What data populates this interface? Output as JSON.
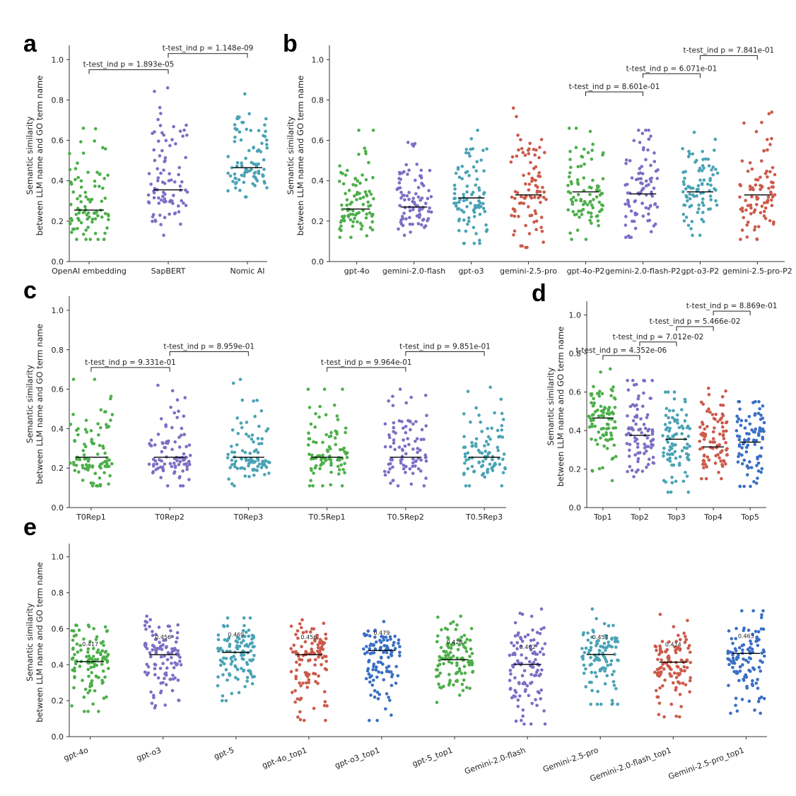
{
  "chart_data": [
    {
      "panel": "a",
      "type": "scatter",
      "ylabel": "Semantic similarity\nbetween LLM name and GO term name",
      "ylim": [
        0.0,
        1.05
      ],
      "yticks": [
        "0.0",
        "0.2",
        "0.4",
        "0.6",
        "0.8",
        "1.0"
      ],
      "categories": [
        "OpenAI embedding",
        "SapBERT",
        "Nomic AI"
      ],
      "colors": [
        "#4daf4a",
        "#7b6fc4",
        "#4aa3b5"
      ],
      "medians": [
        0.255,
        0.355,
        0.465
      ],
      "spreads": [
        [
          0.11,
          0.66
        ],
        [
          0.13,
          0.86
        ],
        [
          0.32,
          0.83
        ]
      ],
      "n_points": 90,
      "comparisons": [
        {
          "from": 0,
          "to": 1,
          "level": 0.95,
          "text": "t-test_ind p = 1.893e-05"
        },
        {
          "from": 1,
          "to": 2,
          "level": 1.03,
          "text": "t-test_ind p = 1.148e-09"
        }
      ]
    },
    {
      "panel": "b",
      "type": "scatter",
      "ylabel": "Semantic similarity\nbetween LLM name and GO term name",
      "ylim": [
        0.0,
        1.05
      ],
      "yticks": [
        "0.0",
        "0.2",
        "0.4",
        "0.6",
        "0.8",
        "1.0"
      ],
      "categories": [
        "gpt-4o",
        "gemini-2.0-flash",
        "gpt-o3",
        "gemini-2.5-pro",
        "gpt-4o-P2",
        "gemini-2.0-flash-P2",
        "gpt-o3-P2",
        "gemini-2.5-pro-P2"
      ],
      "colors": [
        "#4daf4a",
        "#7b6fc4",
        "#4aa3b5",
        "#cc5a4a",
        "#4daf4a",
        "#7b6fc4",
        "#4aa3b5",
        "#cc5a4a"
      ],
      "medians": [
        0.26,
        0.27,
        0.315,
        0.33,
        0.345,
        0.335,
        0.345,
        0.33
      ],
      "spreads": [
        [
          0.12,
          0.65
        ],
        [
          0.13,
          0.59
        ],
        [
          0.09,
          0.65
        ],
        [
          0.07,
          0.76
        ],
        [
          0.11,
          0.66
        ],
        [
          0.12,
          0.65
        ],
        [
          0.13,
          0.64
        ],
        [
          0.11,
          0.74
        ]
      ],
      "n_points": 90,
      "comparisons": [
        {
          "from": 4,
          "to": 5,
          "level": 0.84,
          "text": "t-test_ind p = 8.601e-01"
        },
        {
          "from": 5,
          "to": 6,
          "level": 0.93,
          "text": "t-test_ind p = 6.071e-01"
        },
        {
          "from": 6,
          "to": 7,
          "level": 1.02,
          "text": "t-test_ind p = 7.841e-01"
        }
      ]
    },
    {
      "panel": "c",
      "type": "scatter",
      "ylabel": "Semantic similarity\nbetween LLM name and GO term name",
      "ylim": [
        0.0,
        1.05
      ],
      "yticks": [
        "0.0",
        "0.2",
        "0.4",
        "0.6",
        "0.8",
        "1.0"
      ],
      "categories": [
        "T0Rep1",
        "T0Rep2",
        "T0Rep3",
        "T0.5Rep1",
        "T0.5Rep2",
        "T0.5Rep3"
      ],
      "colors": [
        "#4daf4a",
        "#7b6fc4",
        "#4aa3b5",
        "#4daf4a",
        "#7b6fc4",
        "#4aa3b5"
      ],
      "medians": [
        0.255,
        0.255,
        0.255,
        0.255,
        0.255,
        0.255
      ],
      "spreads": [
        [
          0.11,
          0.65
        ],
        [
          0.11,
          0.62
        ],
        [
          0.11,
          0.65
        ],
        [
          0.11,
          0.6
        ],
        [
          0.11,
          0.6
        ],
        [
          0.11,
          0.61
        ]
      ],
      "n_points": 90,
      "comparisons": [
        {
          "from": 0,
          "to": 1,
          "level": 0.71,
          "text": "t-test_ind p = 9.331e-01"
        },
        {
          "from": 1,
          "to": 2,
          "level": 0.79,
          "text": "t-test_ind p = 8.959e-01"
        },
        {
          "from": 3,
          "to": 4,
          "level": 0.71,
          "text": "t-test_ind p = 9.964e-01"
        },
        {
          "from": 4,
          "to": 5,
          "level": 0.79,
          "text": "t-test_ind p = 9.851e-01"
        }
      ]
    },
    {
      "panel": "d",
      "type": "scatter",
      "ylabel": "Semantic similarity\nbetween LLM name and GO term name",
      "ylim": [
        0.0,
        1.05
      ],
      "yticks": [
        "0.0",
        "0.2",
        "0.4",
        "0.6",
        "0.8",
        "1.0"
      ],
      "categories": [
        "Top1",
        "Top2",
        "Top3",
        "Top4",
        "Top5"
      ],
      "colors": [
        "#4daf4a",
        "#7b6fc4",
        "#4aa3b5",
        "#cc5a4a",
        "#3a6fc4"
      ],
      "medians": [
        0.465,
        0.375,
        0.355,
        0.315,
        0.34
      ],
      "spreads": [
        [
          0.14,
          0.72
        ],
        [
          0.16,
          0.66
        ],
        [
          0.08,
          0.6
        ],
        [
          0.15,
          0.62
        ],
        [
          0.11,
          0.55
        ]
      ],
      "n_points": 90,
      "comparisons": [
        {
          "from": 0,
          "to": 1,
          "level": 0.79,
          "text": "t-test_ind p = 4.352e-06"
        },
        {
          "from": 1,
          "to": 2,
          "level": 0.86,
          "text": "t-test_ind p = 7.012e-02"
        },
        {
          "from": 2,
          "to": 3,
          "level": 0.94,
          "text": "t-test_ind p = 5.466e-02"
        },
        {
          "from": 3,
          "to": 4,
          "level": 1.02,
          "text": "t-test_ind p = 8.869e-01"
        }
      ]
    },
    {
      "panel": "e",
      "type": "scatter",
      "ylabel": "Semantic similarity\nbetween LLM name and GO term name",
      "ylim": [
        0.0,
        1.05
      ],
      "yticks": [
        "0.0",
        "0.2",
        "0.4",
        "0.6",
        "0.8",
        "1.0"
      ],
      "categories": [
        "gpt-4o",
        "gpt-o3",
        "gpt-5",
        "gpt-4o_top1",
        "gpt-o3_top1",
        "gpt-5_top1",
        "Gemini-2.0-flash",
        "Gemini-2.5-pro",
        "Gemini-2.0-flash_top1",
        "Gemini-2.5-pro_top1"
      ],
      "colors": [
        "#4daf4a",
        "#7b6fc4",
        "#4aa3b5",
        "#cc5a4a",
        "#3a6fc4",
        "#4daf4a",
        "#7b6fc4",
        "#4aa3b5",
        "#cc5a4a",
        "#3a6fc4"
      ],
      "medians": [
        0.417,
        0.456,
        0.469,
        0.456,
        0.479,
        0.428,
        0.402,
        0.457,
        0.414,
        0.463
      ],
      "median_labels": [
        "0.417",
        "0.456",
        "0.469",
        "0.456",
        "0.479",
        "0.428",
        "0.402",
        "0.457",
        "0.414",
        "0.463"
      ],
      "spreads": [
        [
          0.14,
          0.62
        ],
        [
          0.16,
          0.67
        ],
        [
          0.2,
          0.66
        ],
        [
          0.09,
          0.65
        ],
        [
          0.09,
          0.64
        ],
        [
          0.19,
          0.67
        ],
        [
          0.07,
          0.71
        ],
        [
          0.18,
          0.71
        ],
        [
          0.11,
          0.68
        ],
        [
          0.13,
          0.7
        ]
      ],
      "n_points": 110,
      "comparisons": []
    }
  ]
}
